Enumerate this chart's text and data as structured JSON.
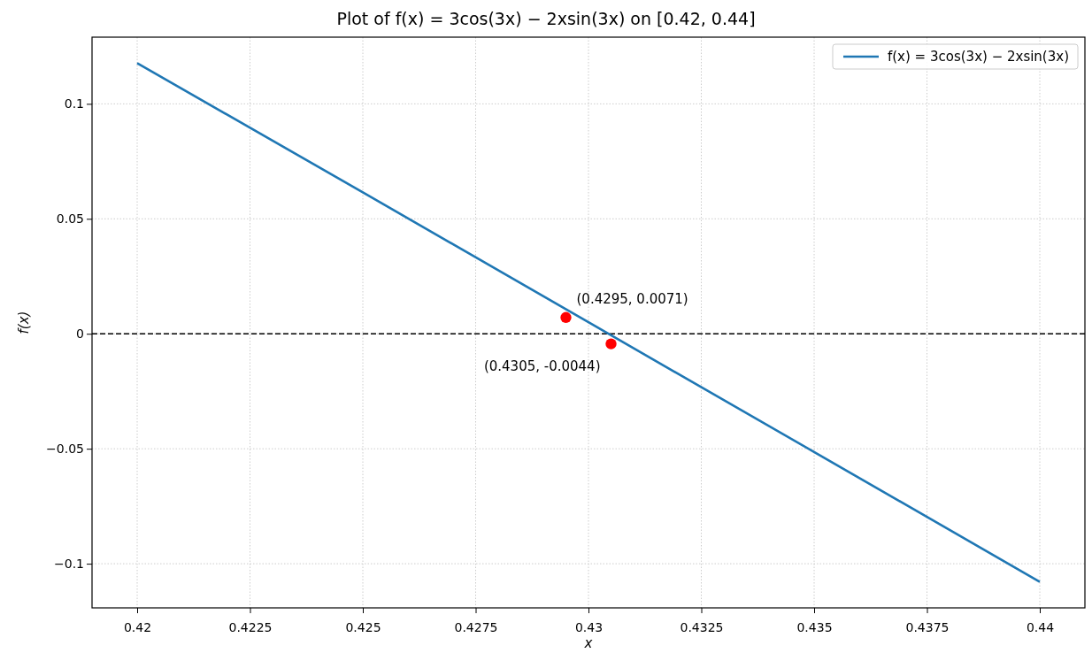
{
  "chart_data": {
    "type": "line",
    "title": "Plot of f(x) = 3cos(3x) − 2xsin(3x) on [0.42, 0.44]",
    "xlabel": "x",
    "ylabel": "f(x)",
    "xlim": [
      0.419,
      0.441
    ],
    "ylim": [
      -0.1192,
      0.129
    ],
    "xticks": [
      0.42,
      0.4225,
      0.425,
      0.4275,
      0.43,
      0.4325,
      0.435,
      0.4375,
      0.44
    ],
    "yticks": [
      {
        "value": -0.1,
        "label": "−0.1"
      },
      {
        "value": -0.05,
        "label": "−0.05"
      },
      0,
      0.05,
      0.1
    ],
    "grid": true,
    "legend": "top right",
    "ref_lines": [
      {
        "axis": "y",
        "value": 0,
        "color": "#000000",
        "line_style": "dashed"
      }
    ],
    "series": [
      {
        "name": "f(x) = 3cos(3x) − 2xsin(3x)",
        "color": "#1f77b4",
        "x": [
          0.42,
          0.425,
          0.43,
          0.435,
          0.44
        ],
        "values": [
          0.1177,
          0.0615,
          0.005,
          -0.0514,
          -0.1079
        ],
        "marker": "none",
        "line_style": "solid"
      },
      {
        "type": "scatter",
        "color": "#ff0000",
        "x": [
          0.4295,
          0.4305
        ],
        "values": [
          0.0071,
          -0.0044
        ],
        "marker": "circle"
      }
    ],
    "annotations": [
      {
        "text": "(0.4295, 0.0071)",
        "x": 0.4295,
        "y": 0.0071
      },
      {
        "text": "(0.4305, -0.0044)",
        "x": 0.4305,
        "y": -0.0044
      }
    ]
  }
}
